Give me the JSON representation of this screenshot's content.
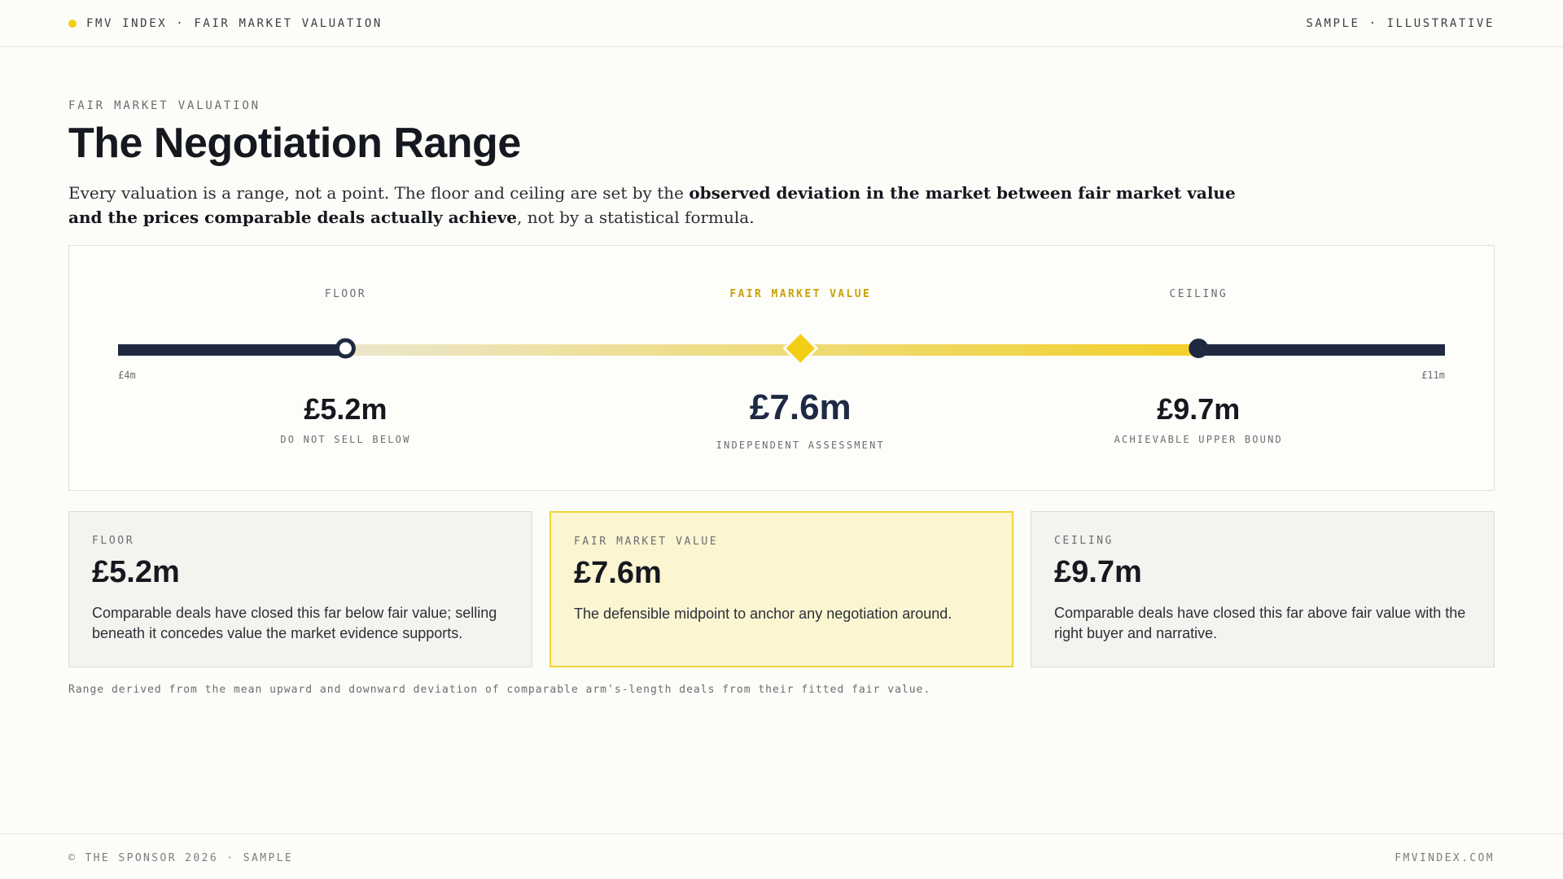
{
  "header": {
    "brand": "FMV INDEX · FAIR MARKET VALUATION",
    "tag": "SAMPLE · ILLUSTRATIVE"
  },
  "intro": {
    "eyebrow": "FAIR MARKET VALUATION",
    "title": "The Negotiation Range",
    "lead_1": "Every valuation is a range, not a point. The floor and ceiling are set by the ",
    "lead_bold": "observed deviation in the market between fair market value and the prices comparable deals actually achieve",
    "lead_2": ", not by a statistical formula."
  },
  "chart_data": {
    "type": "range",
    "axis_min": 4,
    "axis_max": 11,
    "axis_min_label": "£4m",
    "axis_max_label": "£11m",
    "points": [
      {
        "key": "floor",
        "label": "FLOOR",
        "value": 5.2,
        "value_label": "£5.2m",
        "caption": "DO NOT SELL BELOW"
      },
      {
        "key": "fmv",
        "label": "FAIR MARKET VALUE",
        "value": 7.6,
        "value_label": "£7.6m",
        "caption": "INDEPENDENT ASSESSMENT"
      },
      {
        "key": "ceiling",
        "label": "CEILING",
        "value": 9.7,
        "value_label": "£9.7m",
        "caption": "ACHIEVABLE UPPER BOUND"
      }
    ],
    "colors": {
      "track": "#1f2a41",
      "accent": "#f2cf16",
      "fade": "#ece7cc"
    }
  },
  "cards": [
    {
      "kicker": "FLOOR",
      "value": "£5.2m",
      "text": "Comparable deals have closed this far below fair value; selling beneath it concedes value the market evidence supports."
    },
    {
      "kicker": "FAIR MARKET VALUE",
      "value": "£7.6m",
      "text": "The defensible midpoint to anchor any negotiation around."
    },
    {
      "kicker": "CEILING",
      "value": "£9.7m",
      "text": "Comparable deals have closed this far above fair value with the right buyer and narrative."
    }
  ],
  "footnote": "Range derived from the mean upward and downward deviation of comparable arm's-length deals from their fitted fair value.",
  "footer": {
    "left": "© THE SPONSOR 2026 · SAMPLE",
    "right": "FMVINDEX.COM"
  }
}
